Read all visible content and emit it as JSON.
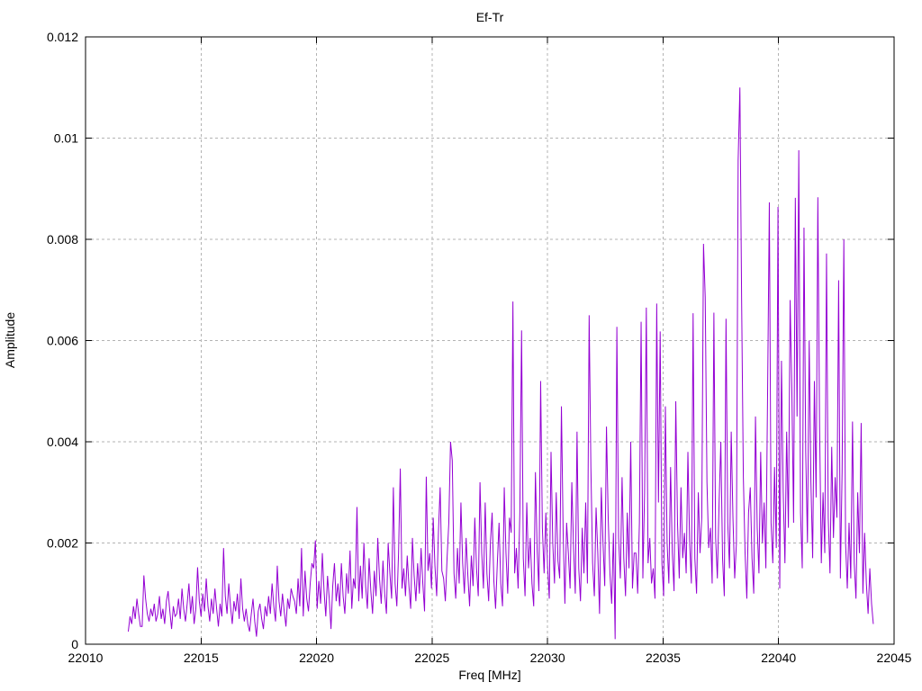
{
  "chart": {
    "title": "Ef-Tr",
    "xlabel": "Freq [MHz]",
    "ylabel": "Amplitude"
  },
  "chart_data": {
    "type": "line",
    "title": "Ef-Tr",
    "xlabel": "Freq [MHz]",
    "ylabel": "Amplitude",
    "xlim": [
      22010,
      22045
    ],
    "ylim": [
      0,
      0.012
    ],
    "xticks": [
      22010,
      22015,
      22020,
      22025,
      22030,
      22035,
      22040,
      22045
    ],
    "xtick_labels": [
      "22010",
      "22015",
      "22020",
      "22025",
      "22030",
      "22035",
      "22040",
      "22045"
    ],
    "yticks": [
      0,
      0.002,
      0.004,
      0.006,
      0.008,
      0.01,
      0.012
    ],
    "ytick_labels": [
      "0",
      "0.002",
      "0.004",
      "0.006",
      "0.008",
      "0.01",
      "0.012"
    ],
    "grid": true,
    "grid_style": "dashed",
    "grid_color": "#b3b3b3",
    "border_color": "#000000",
    "background": "#ffffff",
    "legend": "none",
    "line_color": "#9400D3",
    "series": [
      {
        "name": "Ef-Tr",
        "x_start": 22011.85,
        "x_step": 0.075,
        "amp_scale": 1e-05,
        "amps_e5": [
          25,
          55,
          40,
          75,
          50,
          90,
          60,
          35,
          35,
          136,
          90,
          60,
          45,
          70,
          55,
          80,
          45,
          60,
          95,
          50,
          70,
          40,
          85,
          105,
          65,
          30,
          75,
          55,
          60,
          90,
          50,
          110,
          70,
          45,
          80,
          120,
          60,
          95,
          40,
          70,
          152,
          85,
          55,
          100,
          65,
          130,
          75,
          45,
          90,
          60,
          110,
          70,
          35,
          80,
          55,
          190,
          95,
          60,
          120,
          75,
          40,
          85,
          65,
          100,
          50,
          130,
          70,
          45,
          70,
          40,
          25,
          60,
          90,
          45,
          15,
          65,
          80,
          50,
          30,
          75,
          55,
          95,
          60,
          120,
          75,
          45,
          155,
          85,
          55,
          100,
          65,
          35,
          90,
          70,
          110,
          95,
          85,
          60,
          130,
          75,
          190,
          55,
          145,
          90,
          65,
          120,
          160,
          150,
          205,
          70,
          125,
          80,
          180,
          105,
          55,
          135,
          90,
          30,
          115,
          160,
          85,
          120,
          75,
          160,
          95,
          60,
          140,
          100,
          185,
          70,
          130,
          110,
          271,
          85,
          155,
          90,
          200,
          115,
          70,
          170,
          105,
          60,
          145,
          95,
          210,
          130,
          80,
          165,
          100,
          60,
          200,
          140,
          90,
          310,
          120,
          75,
          180,
          347,
          110,
          150,
          95,
          175,
          115,
          70,
          210,
          135,
          85,
          160,
          100,
          190,
          120,
          65,
          331,
          145,
          180,
          110,
          250,
          155,
          95,
          220,
          310,
          145,
          130,
          85,
          170,
          240,
          400,
          363,
          140,
          90,
          190,
          120,
          280,
          160,
          100,
          210,
          135,
          75,
          175,
          115,
          250,
          150,
          95,
          320,
          180,
          110,
          280,
          140,
          85,
          200,
          260,
          125,
          70,
          160,
          240,
          120,
          75,
          310,
          180,
          100,
          250,
          220,
          677,
          140,
          190,
          110,
          260,
          620,
          170,
          95,
          280,
          150,
          210,
          120,
          75,
          340,
          185,
          105,
          520,
          230,
          140,
          260,
          155,
          90,
          380,
          200,
          120,
          300,
          165,
          130,
          470,
          220,
          80,
          240,
          180,
          110,
          320,
          190,
          100,
          420,
          150,
          85,
          230,
          140,
          280,
          120,
          650,
          350,
          160,
          95,
          270,
          180,
          60,
          310,
          200,
          115,
          430,
          250,
          140,
          80,
          220,
          10,
          627,
          210,
          130,
          330,
          170,
          95,
          260,
          150,
          400,
          110,
          180,
          180,
          100,
          240,
          637,
          130,
          300,
          665,
          160,
          210,
          120,
          150,
          90,
          673,
          280,
          618,
          160,
          95,
          470,
          200,
          120,
          350,
          180,
          105,
          480,
          240,
          130,
          310,
          170,
          220,
          140,
          380,
          200,
          120,
          654,
          170,
          100,
          300,
          180,
          250,
          791,
          686,
          320,
          190,
          230,
          120,
          655,
          210,
          130,
          280,
          400,
          170,
          95,
          643,
          240,
          150,
          420,
          250,
          130,
          200,
          956,
          1100,
          680,
          330,
          180,
          90,
          260,
          310,
          170,
          100,
          450,
          230,
          140,
          380,
          200,
          280,
          150,
          500,
          873,
          240,
          160,
          350,
          190,
          864,
          110,
          560,
          300,
          160,
          420,
          230,
          680,
          500,
          240,
          882,
          450,
          976,
          260,
          150,
          823,
          380,
          200,
          600,
          320,
          170,
          520,
          290,
          883,
          430,
          160,
          300,
          180,
          772,
          250,
          140,
          390,
          210,
          330,
          250,
          719,
          130,
          340,
          800,
          200,
          110,
          240,
          130,
          440,
          160,
          90,
          300,
          180,
          437,
          100,
          220,
          120,
          60,
          150,
          80,
          40
        ]
      }
    ]
  }
}
